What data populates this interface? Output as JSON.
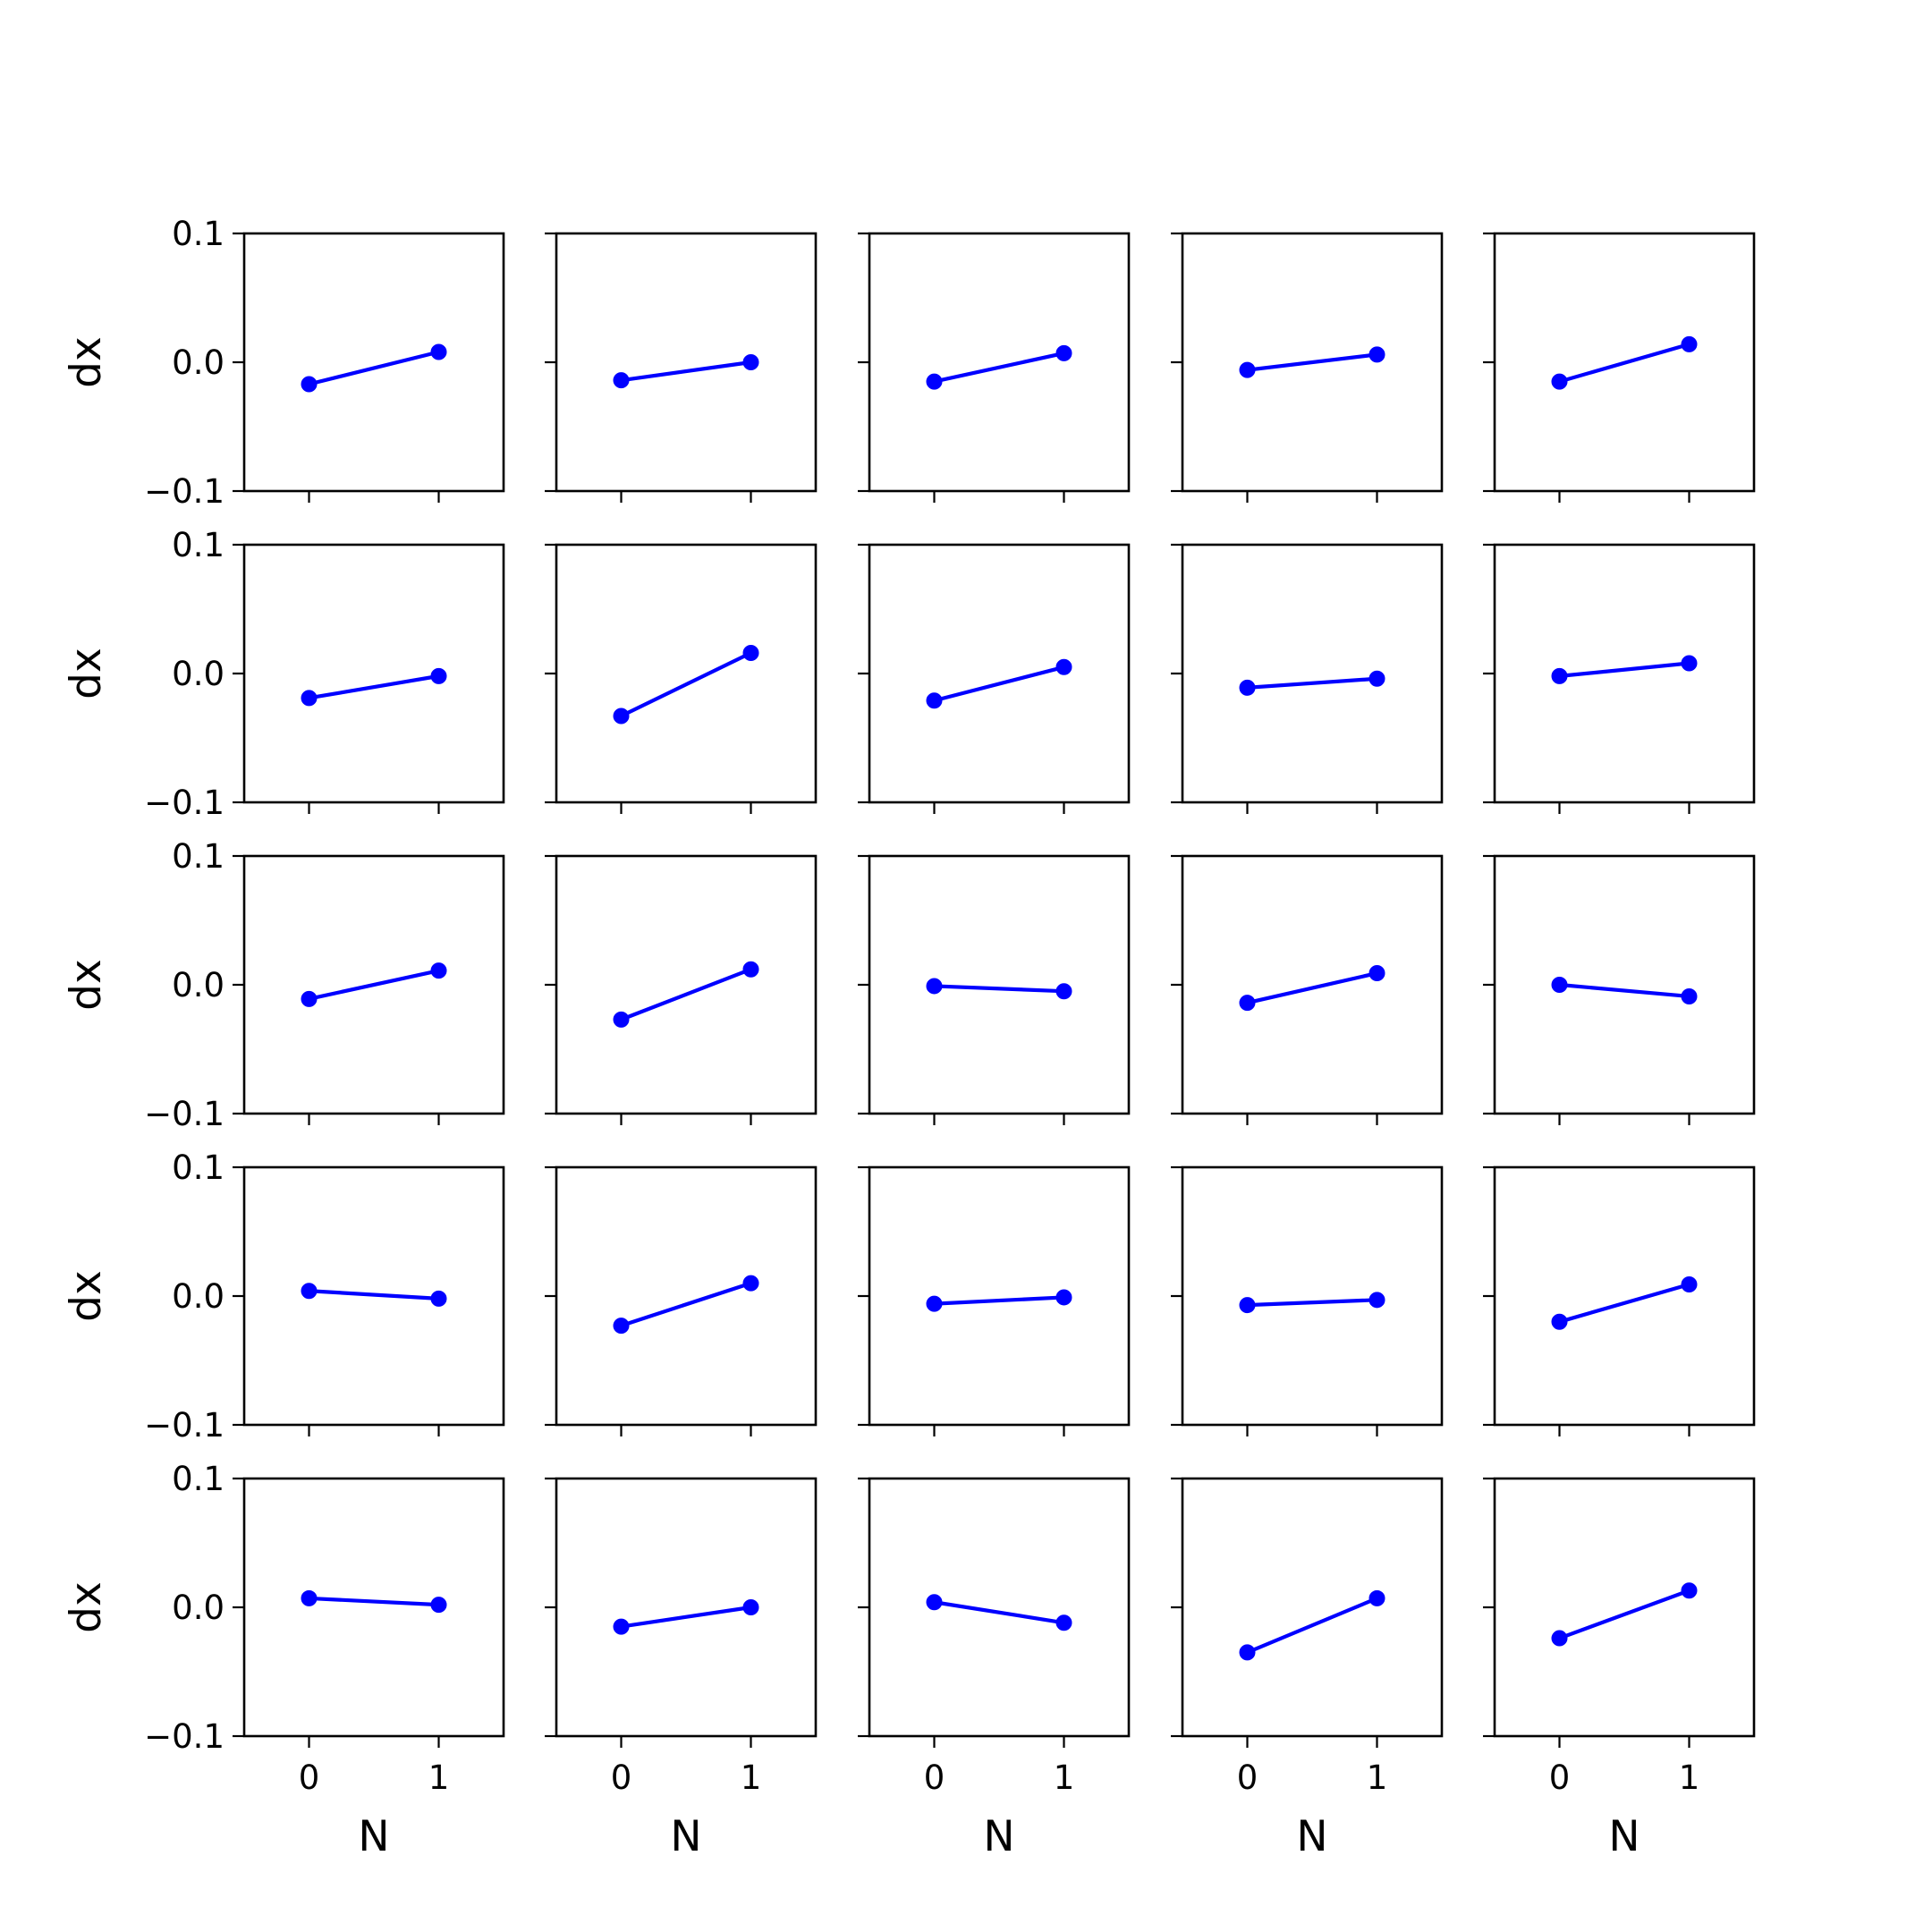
{
  "chart_data": {
    "type": "line",
    "layout": "5x5 grid of small multiples (shared axes)",
    "xlabel": "N",
    "ylabel": "dx",
    "x_ticks": [
      "0",
      "1"
    ],
    "y_ticks": [
      "−0.1",
      "0.0",
      "0.1"
    ],
    "xlim": [
      -0.5,
      1.5
    ],
    "ylim": [
      -0.1,
      0.1
    ],
    "grid": false,
    "marker": "circle",
    "series_color": "#0000ff",
    "x": [
      0,
      1
    ],
    "panels": [
      [
        [
          -0.017,
          0.008
        ],
        [
          -0.014,
          0.0
        ],
        [
          -0.015,
          0.007
        ],
        [
          -0.006,
          0.006
        ],
        [
          -0.015,
          0.014
        ]
      ],
      [
        [
          -0.019,
          -0.002
        ],
        [
          -0.033,
          0.016
        ],
        [
          -0.021,
          0.005
        ],
        [
          -0.011,
          -0.004
        ],
        [
          -0.002,
          0.008
        ]
      ],
      [
        [
          -0.011,
          0.011
        ],
        [
          -0.027,
          0.012
        ],
        [
          -0.001,
          -0.005
        ],
        [
          -0.014,
          0.009
        ],
        [
          0.0,
          -0.009
        ]
      ],
      [
        [
          0.004,
          -0.002
        ],
        [
          -0.023,
          0.01
        ],
        [
          -0.006,
          -0.001
        ],
        [
          -0.007,
          -0.003
        ],
        [
          -0.02,
          0.009
        ]
      ],
      [
        [
          0.007,
          0.002
        ],
        [
          -0.015,
          0.0
        ],
        [
          0.004,
          -0.012
        ],
        [
          -0.035,
          0.007
        ],
        [
          -0.024,
          0.013
        ]
      ]
    ]
  }
}
